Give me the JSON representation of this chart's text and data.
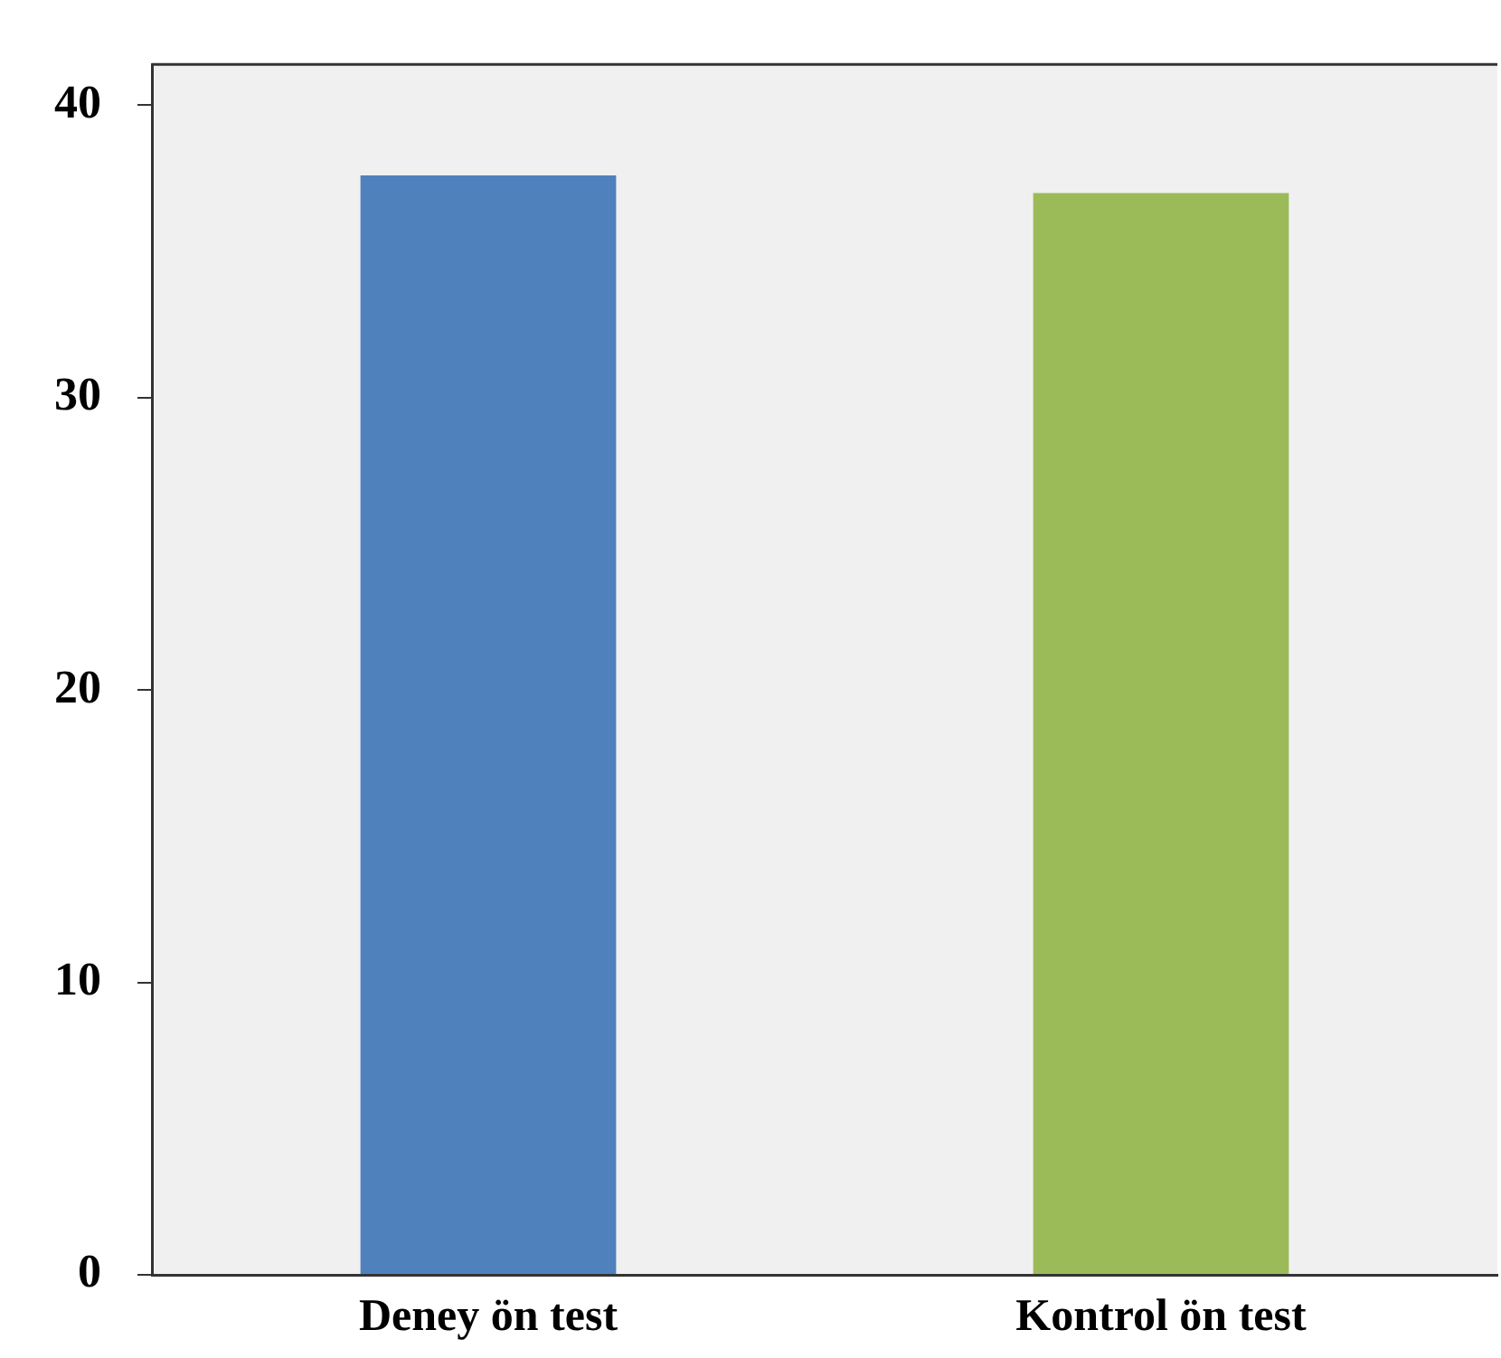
{
  "chart_data": {
    "type": "bar",
    "categories": [
      "Deney ön test",
      "Kontrol ön test"
    ],
    "values": [
      37.6,
      37.0
    ],
    "colors": [
      "#4f81bd",
      "#9bbb59"
    ],
    "ylim": [
      0,
      41.4
    ],
    "yticks": [
      0,
      10,
      20,
      30,
      40
    ],
    "grid": false,
    "legend": false
  }
}
